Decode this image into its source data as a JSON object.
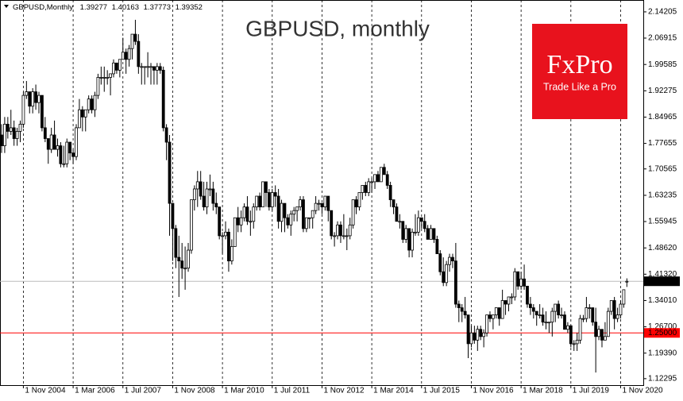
{
  "chart_data": {
    "type": "candlestick",
    "title": "GBPUSD, monthly",
    "symbol": "GBPUSD,Monthly",
    "categories": [
      null,
      null,
      null,
      null,
      null,
      null,
      null,
      "1 Nov 2004",
      null,
      null,
      null,
      null,
      null,
      null,
      null,
      null,
      null,
      null,
      null,
      null,
      null,
      null,
      null,
      "1 Mar 2006",
      null,
      null,
      null,
      null,
      null,
      null,
      null,
      null,
      null,
      null,
      null,
      null,
      null,
      null,
      null,
      "1 Jul 2007",
      null,
      null,
      null,
      null,
      null,
      null,
      null,
      null,
      null,
      null,
      null,
      null,
      null,
      null,
      null,
      "1 Nov 2008",
      null,
      null,
      null,
      null,
      null,
      null,
      null,
      null,
      null,
      null,
      null,
      null,
      null,
      null,
      null,
      "1 Mar 2010",
      null,
      null,
      null,
      null,
      null,
      null,
      null,
      null,
      null,
      null,
      null,
      null,
      null,
      null,
      null,
      "1 Jul 2011",
      null,
      null,
      null,
      null,
      null,
      null,
      null,
      null,
      null,
      null,
      null,
      null,
      null,
      null,
      null,
      "1 Nov 2012",
      null,
      null,
      null,
      null,
      null,
      null,
      null,
      null,
      null,
      null,
      null,
      null,
      null,
      null,
      null,
      "1 Mar 2014",
      null,
      null,
      null,
      null,
      null,
      null,
      null,
      null,
      null,
      null,
      null,
      null,
      null,
      null,
      null,
      "1 Jul 2015",
      null,
      null,
      null,
      null,
      null,
      null,
      null,
      null,
      null,
      null,
      null,
      null,
      null,
      null,
      null,
      "1 Nov 2016",
      null,
      null,
      null,
      null,
      null,
      null,
      null,
      null,
      null,
      null,
      null,
      null,
      null,
      null,
      null,
      "1 Mar 2018",
      null,
      null,
      null,
      null,
      null,
      null,
      null,
      null,
      null,
      null,
      null,
      null,
      null,
      null,
      null,
      "1 Jul 2019",
      null,
      null,
      null,
      null,
      null,
      null,
      null,
      null,
      null,
      null,
      null,
      null,
      null,
      null,
      null,
      "1 Nov 2020",
      null,
      null
    ],
    "open": [
      1.8,
      1.77,
      1.83,
      1.81,
      1.82,
      1.79,
      1.81,
      1.83,
      1.91,
      1.92,
      1.88,
      1.92,
      1.89,
      1.91,
      1.82,
      1.79,
      1.76,
      1.8,
      1.76,
      1.77,
      1.72,
      1.72,
      1.78,
      1.75,
      1.74,
      1.82,
      1.87,
      1.85,
      1.87,
      1.9,
      1.87,
      1.91,
      1.96,
      1.96,
      1.96,
      1.96,
      1.97,
      2.0,
      1.98,
      2.01,
      2.03,
      2.01,
      2.04,
      2.08,
      2.06,
      1.99,
      1.99,
      1.99,
      1.99,
      1.99,
      1.98,
      1.99,
      1.98,
      1.82,
      1.78,
      1.61,
      1.54,
      1.46,
      1.45,
      1.43,
      1.43,
      1.48,
      1.62,
      1.65,
      1.67,
      1.63,
      1.6,
      1.65,
      1.65,
      1.61,
      1.6,
      1.52,
      1.52,
      1.53,
      1.45,
      1.49,
      1.57,
      1.55,
      1.57,
      1.6,
      1.56,
      1.56,
      1.6,
      1.63,
      1.6,
      1.67,
      1.64,
      1.6,
      1.64,
      1.63,
      1.56,
      1.61,
      1.57,
      1.55,
      1.58,
      1.59,
      1.6,
      1.62,
      1.54,
      1.57,
      1.57,
      1.59,
      1.61,
      1.61,
      1.6,
      1.63,
      1.59,
      1.52,
      1.52,
      1.55,
      1.52,
      1.52,
      1.52,
      1.55,
      1.62,
      1.6,
      1.64,
      1.66,
      1.64,
      1.67,
      1.67,
      1.69,
      1.67,
      1.71,
      1.69,
      1.66,
      1.62,
      1.6,
      1.56,
      1.56,
      1.51,
      1.54,
      1.48,
      1.53,
      1.53,
      1.57,
      1.56,
      1.54,
      1.51,
      1.54,
      1.51,
      1.47,
      1.42,
      1.39,
      1.44,
      1.46,
      1.45,
      1.33,
      1.32,
      1.31,
      1.3,
      1.22,
      1.25,
      1.23,
      1.26,
      1.24,
      1.25,
      1.3,
      1.29,
      1.3,
      1.32,
      1.29,
      1.34,
      1.33,
      1.35,
      1.35,
      1.42,
      1.38,
      1.4,
      1.38,
      1.33,
      1.32,
      1.31,
      1.3,
      1.3,
      1.28,
      1.28,
      1.28,
      1.31,
      1.33,
      1.3,
      1.3,
      1.26,
      1.27,
      1.22,
      1.22,
      1.23,
      1.29,
      1.29,
      1.32,
      1.32,
      1.28,
      1.24,
      1.26,
      1.23,
      1.24,
      1.31,
      1.34,
      1.29,
      1.3,
      1.33,
      1.39277
    ],
    "high": [
      1.83,
      1.85,
      1.85,
      1.87,
      1.84,
      1.82,
      1.84,
      1.92,
      1.95,
      1.92,
      1.93,
      1.94,
      1.92,
      1.91,
      1.85,
      1.79,
      1.82,
      1.84,
      1.79,
      1.78,
      1.77,
      1.79,
      1.78,
      1.76,
      1.83,
      1.9,
      1.88,
      1.87,
      1.91,
      1.91,
      1.92,
      1.97,
      1.99,
      1.99,
      1.98,
      1.97,
      2.01,
      2.0,
      2.01,
      2.07,
      2.04,
      2.05,
      2.08,
      2.12,
      2.08,
      2.0,
      1.99,
      2.03,
      2.0,
      1.99,
      2.0,
      2.0,
      1.99,
      1.83,
      1.8,
      1.61,
      1.55,
      1.52,
      1.5,
      1.49,
      1.5,
      1.62,
      1.66,
      1.7,
      1.7,
      1.67,
      1.67,
      1.69,
      1.67,
      1.64,
      1.6,
      1.53,
      1.56,
      1.54,
      1.51,
      1.57,
      1.6,
      1.59,
      1.61,
      1.63,
      1.59,
      1.61,
      1.63,
      1.64,
      1.67,
      1.67,
      1.65,
      1.65,
      1.66,
      1.65,
      1.62,
      1.61,
      1.58,
      1.59,
      1.6,
      1.6,
      1.63,
      1.63,
      1.57,
      1.57,
      1.59,
      1.63,
      1.62,
      1.61,
      1.63,
      1.63,
      1.59,
      1.53,
      1.56,
      1.56,
      1.58,
      1.54,
      1.57,
      1.62,
      1.63,
      1.64,
      1.66,
      1.67,
      1.68,
      1.68,
      1.69,
      1.7,
      1.71,
      1.72,
      1.7,
      1.67,
      1.62,
      1.61,
      1.58,
      1.56,
      1.55,
      1.54,
      1.54,
      1.58,
      1.59,
      1.57,
      1.58,
      1.55,
      1.55,
      1.54,
      1.52,
      1.48,
      1.46,
      1.45,
      1.47,
      1.47,
      1.5,
      1.34,
      1.33,
      1.35,
      1.3,
      1.27,
      1.27,
      1.27,
      1.27,
      1.26,
      1.3,
      1.31,
      1.3,
      1.32,
      1.32,
      1.37,
      1.34,
      1.35,
      1.36,
      1.43,
      1.42,
      1.42,
      1.44,
      1.38,
      1.35,
      1.33,
      1.31,
      1.33,
      1.32,
      1.31,
      1.28,
      1.32,
      1.33,
      1.34,
      1.32,
      1.31,
      1.28,
      1.27,
      1.23,
      1.25,
      1.3,
      1.3,
      1.35,
      1.33,
      1.32,
      1.32,
      1.27,
      1.26,
      1.28,
      1.32,
      1.34,
      1.35,
      1.32,
      1.34,
      1.37,
      1.40163
    ],
    "low": [
      1.75,
      1.75,
      1.79,
      1.8,
      1.77,
      1.77,
      1.78,
      1.82,
      1.9,
      1.86,
      1.86,
      1.87,
      1.86,
      1.81,
      1.78,
      1.72,
      1.75,
      1.76,
      1.74,
      1.71,
      1.71,
      1.71,
      1.73,
      1.72,
      1.73,
      1.82,
      1.81,
      1.81,
      1.86,
      1.86,
      1.85,
      1.9,
      1.94,
      1.92,
      1.94,
      1.91,
      1.96,
      1.97,
      1.96,
      2.01,
      1.97,
      1.99,
      2.01,
      2.05,
      1.97,
      1.94,
      1.94,
      1.96,
      1.94,
      1.94,
      1.94,
      1.97,
      1.81,
      1.73,
      1.52,
      1.45,
      1.43,
      1.35,
      1.4,
      1.37,
      1.42,
      1.47,
      1.59,
      1.6,
      1.62,
      1.59,
      1.58,
      1.63,
      1.59,
      1.58,
      1.51,
      1.47,
      1.51,
      1.42,
      1.44,
      1.49,
      1.53,
      1.53,
      1.56,
      1.55,
      1.52,
      1.54,
      1.59,
      1.59,
      1.6,
      1.6,
      1.59,
      1.59,
      1.6,
      1.54,
      1.53,
      1.53,
      1.54,
      1.52,
      1.56,
      1.56,
      1.59,
      1.53,
      1.53,
      1.54,
      1.54,
      1.58,
      1.59,
      1.58,
      1.59,
      1.56,
      1.51,
      1.49,
      1.51,
      1.5,
      1.51,
      1.48,
      1.51,
      1.54,
      1.58,
      1.59,
      1.62,
      1.63,
      1.63,
      1.64,
      1.65,
      1.67,
      1.67,
      1.69,
      1.65,
      1.6,
      1.58,
      1.56,
      1.54,
      1.5,
      1.5,
      1.46,
      1.46,
      1.52,
      1.52,
      1.54,
      1.53,
      1.51,
      1.51,
      1.5,
      1.47,
      1.41,
      1.38,
      1.38,
      1.42,
      1.43,
      1.32,
      1.28,
      1.28,
      1.29,
      1.18,
      1.21,
      1.22,
      1.2,
      1.23,
      1.21,
      1.24,
      1.28,
      1.26,
      1.29,
      1.27,
      1.29,
      1.3,
      1.31,
      1.33,
      1.34,
      1.37,
      1.37,
      1.37,
      1.32,
      1.3,
      1.29,
      1.27,
      1.29,
      1.27,
      1.26,
      1.25,
      1.24,
      1.28,
      1.29,
      1.29,
      1.26,
      1.25,
      1.21,
      1.2,
      1.2,
      1.22,
      1.28,
      1.28,
      1.29,
      1.27,
      1.14,
      1.23,
      1.21,
      1.23,
      1.24,
      1.3,
      1.26,
      1.28,
      1.29,
      1.32,
      1.37773
    ],
    "close": [
      1.77,
      1.83,
      1.81,
      1.82,
      1.79,
      1.81,
      1.83,
      1.91,
      1.92,
      1.88,
      1.92,
      1.89,
      1.91,
      1.82,
      1.79,
      1.76,
      1.8,
      1.76,
      1.77,
      1.72,
      1.72,
      1.78,
      1.75,
      1.74,
      1.82,
      1.87,
      1.85,
      1.87,
      1.9,
      1.87,
      1.91,
      1.96,
      1.96,
      1.96,
      1.96,
      1.97,
      2.0,
      1.98,
      2.01,
      2.03,
      2.01,
      2.04,
      2.08,
      2.06,
      1.99,
      1.99,
      1.99,
      1.99,
      1.99,
      1.98,
      1.99,
      1.98,
      1.82,
      1.78,
      1.61,
      1.54,
      1.46,
      1.45,
      1.43,
      1.43,
      1.48,
      1.62,
      1.65,
      1.67,
      1.63,
      1.6,
      1.65,
      1.65,
      1.61,
      1.6,
      1.52,
      1.52,
      1.53,
      1.45,
      1.49,
      1.57,
      1.55,
      1.57,
      1.6,
      1.56,
      1.56,
      1.6,
      1.63,
      1.6,
      1.67,
      1.64,
      1.6,
      1.64,
      1.63,
      1.56,
      1.61,
      1.57,
      1.55,
      1.58,
      1.59,
      1.6,
      1.62,
      1.54,
      1.57,
      1.57,
      1.59,
      1.61,
      1.61,
      1.6,
      1.63,
      1.59,
      1.52,
      1.52,
      1.55,
      1.52,
      1.52,
      1.52,
      1.55,
      1.62,
      1.6,
      1.64,
      1.66,
      1.64,
      1.67,
      1.67,
      1.69,
      1.67,
      1.71,
      1.69,
      1.66,
      1.62,
      1.6,
      1.56,
      1.56,
      1.51,
      1.54,
      1.48,
      1.53,
      1.53,
      1.57,
      1.56,
      1.54,
      1.51,
      1.54,
      1.51,
      1.47,
      1.42,
      1.39,
      1.44,
      1.46,
      1.45,
      1.33,
      1.32,
      1.31,
      1.3,
      1.22,
      1.25,
      1.23,
      1.26,
      1.24,
      1.25,
      1.3,
      1.29,
      1.3,
      1.32,
      1.29,
      1.34,
      1.33,
      1.35,
      1.35,
      1.42,
      1.38,
      1.4,
      1.38,
      1.33,
      1.32,
      1.31,
      1.3,
      1.3,
      1.28,
      1.28,
      1.28,
      1.31,
      1.33,
      1.3,
      1.3,
      1.26,
      1.27,
      1.22,
      1.22,
      1.23,
      1.29,
      1.29,
      1.32,
      1.32,
      1.28,
      1.24,
      1.26,
      1.23,
      1.24,
      1.31,
      1.34,
      1.29,
      1.3,
      1.33,
      1.37,
      1.39352
    ],
    "up_color": "#ffffff",
    "down_color": "#000000",
    "ylim": [
      1.105,
      2.175
    ],
    "yticks": [
      2.14205,
      2.06915,
      1.99585,
      1.92275,
      1.84965,
      1.77655,
      1.70565,
      1.63235,
      1.55945,
      {
        "value": 1.4862,
        "label": "1.48620"
      },
      {
        "value": 1.4132,
        "label": "1.41320"
      },
      {
        "value": 1.3401,
        "label": "1.34010"
      },
      {
        "value": 1.267,
        "label": "1.26700"
      },
      {
        "value": 1.1939,
        "label": "1.19390"
      },
      1.12295
    ],
    "levels": [
      {
        "value": 1.25,
        "label": "1.25000",
        "color": "#ff0000"
      }
    ]
  },
  "logo": {
    "brand": "FxPro",
    "tagline": "Trade Like a Pro"
  }
}
